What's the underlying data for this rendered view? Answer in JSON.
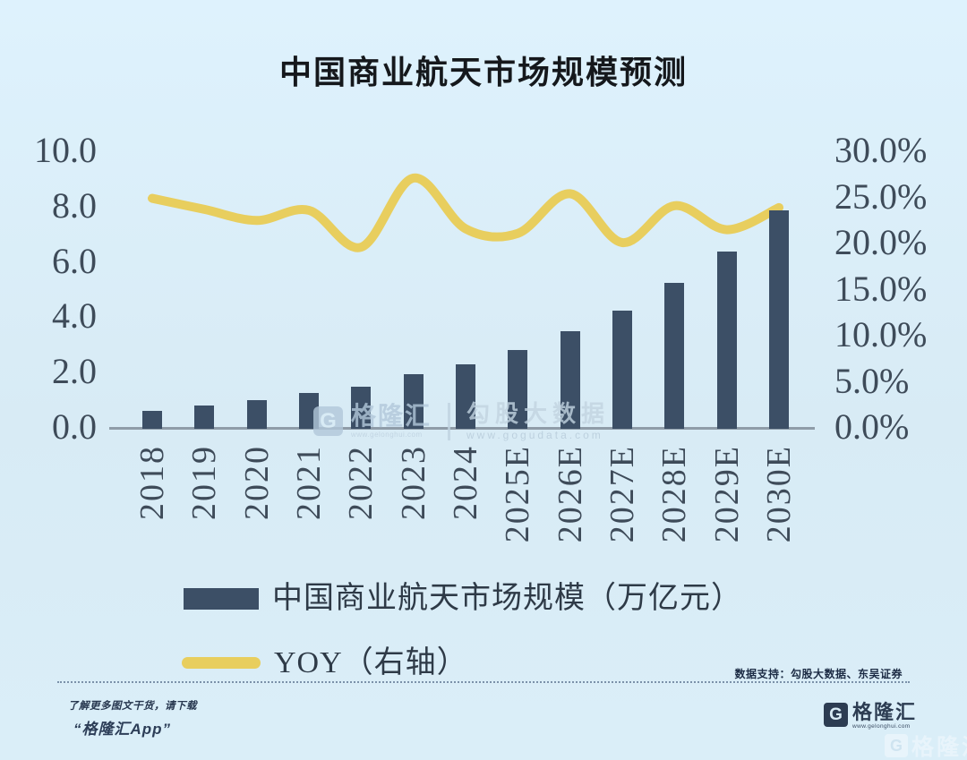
{
  "chart_data": {
    "type": "bar+line",
    "title": "中国商业航天市场规模预测",
    "categories": [
      "2018",
      "2019",
      "2020",
      "2021",
      "2022",
      "2023",
      "2024",
      "2025E",
      "2026E",
      "2027E",
      "2028E",
      "2029E",
      "2030E"
    ],
    "series": [
      {
        "name": "中国商业航天市场规模（万亿元）",
        "type": "bar",
        "axis": "left",
        "color": "#3c4f66",
        "values": [
          0.66,
          0.85,
          1.04,
          1.3,
          1.53,
          1.98,
          2.33,
          2.87,
          3.55,
          4.28,
          5.3,
          6.45,
          7.95
        ]
      },
      {
        "name": "YOY（右轴）",
        "type": "line",
        "axis": "right",
        "color": "#e8ce5e",
        "values": [
          24.8,
          23.6,
          22.4,
          23.5,
          19.5,
          27.0,
          21.5,
          21.0,
          25.3,
          20.0,
          24.0,
          21.4,
          23.8
        ]
      }
    ],
    "left_axis": {
      "ticks": [
        "10.0",
        "8.0",
        "6.0",
        "4.0",
        "2.0",
        "0.0"
      ],
      "range": [
        0,
        10
      ],
      "unit": "万亿元"
    },
    "right_axis": {
      "ticks": [
        "30.0%",
        "25.0%",
        "20.0%",
        "15.0%",
        "10.0%",
        "5.0%",
        "0.0%"
      ],
      "range_pct": [
        0,
        30
      ]
    },
    "grid": false,
    "legend_position": "below-chart-left"
  },
  "source_note": "数据支持：勾股大数据、东吴证券",
  "brand": {
    "initial": "G",
    "name": "格隆汇",
    "url": "www.gelonghui.com"
  },
  "partner": {
    "name": "勾股大数据",
    "url": "www.gogudata.com"
  },
  "footer": {
    "promo_line1": "了解更多图文干货，请下载",
    "promo_line2": "“格隆汇App”"
  },
  "colors": {
    "background": "#d9ecf6",
    "bar": "#3c4f66",
    "line": "#e8ce5e",
    "axis_text": "#3e4b59",
    "title_text": "#15181c",
    "brand_navy": "#2c3c52",
    "watermark": "#b2c8da"
  }
}
